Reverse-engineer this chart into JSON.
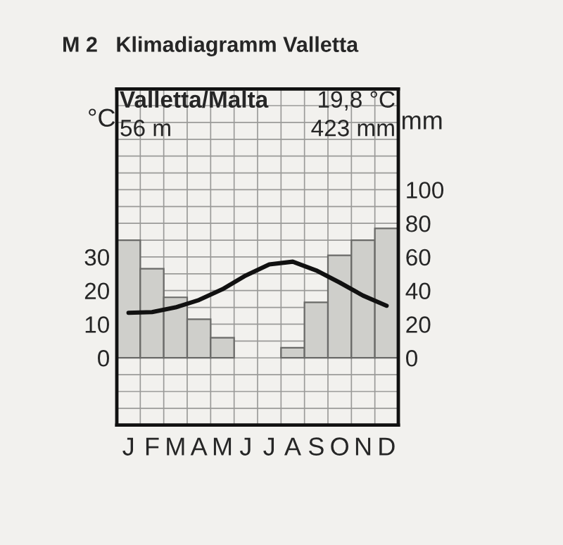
{
  "chart_data": {
    "type": "bar",
    "title": "M 2   Klimadiagramm Valletta",
    "categories": [
      "J",
      "F",
      "M",
      "A",
      "M",
      "J",
      "J",
      "A",
      "S",
      "O",
      "N",
      "D"
    ],
    "series": [
      {
        "axis": "y2",
        "color": "#cfcfcb",
        "values": [
          70,
          53,
          36,
          23,
          12,
          0,
          0,
          6,
          33,
          61,
          70,
          77
        ]
      },
      {
        "type": "line",
        "axis": "y",
        "color": "#111111",
        "values": [
          13.4,
          13.6,
          15,
          17.2,
          20.4,
          24.5,
          27.8,
          28.6,
          26,
          22.4,
          18.5,
          15.5
        ]
      }
    ],
    "ylabel": "°C",
    "y2label": "mm",
    "ylim": [
      -20,
      80
    ],
    "yticks": [
      {
        "value": -20,
        "label": null
      },
      {
        "value": -15,
        "label": null
      },
      {
        "value": -10,
        "label": null
      },
      {
        "value": -5,
        "label": null
      },
      0,
      {
        "value": 5,
        "label": null
      },
      10,
      {
        "value": 15,
        "label": null
      },
      20,
      {
        "value": 25,
        "label": null
      },
      30,
      {
        "value": 35,
        "label": null
      },
      {
        "value": 40,
        "label": null
      },
      {
        "value": 45,
        "label": null
      },
      {
        "value": 50,
        "label": null
      },
      {
        "value": 55,
        "label": null
      },
      {
        "value": 60,
        "label": null
      },
      {
        "value": 65,
        "label": null
      },
      {
        "value": 70,
        "label": null
      },
      {
        "value": 75,
        "label": null
      },
      {
        "value": 80,
        "label": null
      }
    ],
    "y2lim": [
      -40,
      160
    ],
    "y2ticks": [
      0,
      20,
      40,
      60,
      80,
      100
    ],
    "grid": true,
    "line_style": "solid",
    "marker": "none",
    "annotations": [
      "Valletta/Malta",
      "19,8 °C",
      "56 m",
      "423 mm"
    ]
  }
}
